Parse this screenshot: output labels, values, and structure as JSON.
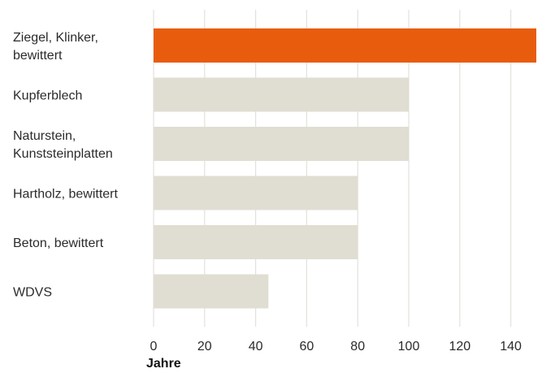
{
  "chart_data": {
    "type": "bar",
    "orientation": "horizontal",
    "categories": [
      [
        "Ziegel, Klinker,",
        "bewittert"
      ],
      [
        "Kupferblech"
      ],
      [
        "Naturstein,",
        "Kunststeinplatten"
      ],
      [
        "Hartholz, bewittert"
      ],
      [
        "Beton, bewittert"
      ],
      [
        "WDVS"
      ]
    ],
    "values": [
      150,
      100,
      100,
      80,
      80,
      45
    ],
    "xlabel": "Jahre",
    "xlim": [
      0,
      150
    ],
    "xticks": [
      "0",
      "20",
      "40",
      "60",
      "80",
      "100",
      "120",
      "140"
    ],
    "highlight_index": 0,
    "grid": "vertical",
    "colors": {
      "highlight": "#e85c0d",
      "bar": "#e0ddd3",
      "grid": "#e3e1da"
    }
  }
}
